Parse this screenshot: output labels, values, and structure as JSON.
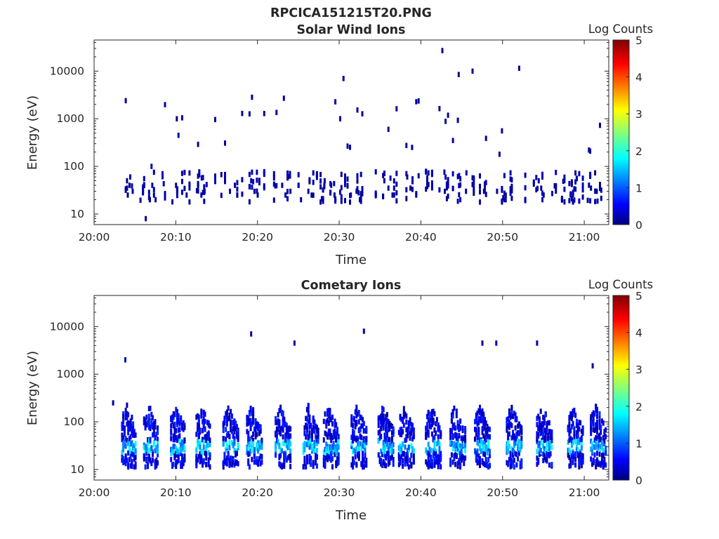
{
  "figure_title": "RPCICA151215T20.PNG",
  "colors": {
    "axis": "#262626",
    "colormap": [
      "#00007f",
      "#0000ff",
      "#007fff",
      "#00ffff",
      "#7fff7f",
      "#ffff00",
      "#ff7f00",
      "#ff0000",
      "#7f0000"
    ]
  },
  "chart_data": [
    {
      "type": "heatmap",
      "title": "Solar Wind Ions",
      "xlabel": "Time",
      "ylabel": "Energy (eV)",
      "xlim": [
        "20:00",
        "21:03"
      ],
      "ylim": [
        6,
        45000
      ],
      "yscale": "log",
      "grid": false,
      "x_ticks": [
        "20:00",
        "20:10",
        "20:20",
        "20:30",
        "20:40",
        "20:50",
        "21:00"
      ],
      "y_ticks": [
        10,
        100,
        1000,
        10000
      ],
      "y_tick_labels": [
        "10",
        "100",
        "1000",
        "10000"
      ],
      "colorbar": {
        "title": "Log Counts",
        "range": [
          0,
          5
        ],
        "ticks": [
          "0",
          "1",
          "2",
          "3",
          "4",
          "5"
        ]
      },
      "points": [
        [
          3.9,
          50,
          0.1
        ],
        [
          3.9,
          35,
          0.2
        ],
        [
          4.0,
          25,
          0.1
        ],
        [
          4.2,
          40,
          0.1
        ],
        [
          4.3,
          60,
          0.2
        ],
        [
          4.6,
          30,
          0.1
        ],
        [
          6.7,
          20,
          0.1
        ],
        [
          6.9,
          100,
          0.2
        ],
        [
          7.0,
          40,
          0.1
        ],
        [
          7.2,
          25,
          0.1
        ],
        [
          7.4,
          20,
          0.1
        ],
        [
          6.2,
          8,
          0.1
        ],
        [
          9.9,
          40,
          0.1
        ],
        [
          10.2,
          450,
          0.2
        ],
        [
          10.0,
          1000,
          0.1
        ],
        [
          11.2,
          25,
          0.1
        ],
        [
          13.0,
          25,
          0.1
        ],
        [
          13.4,
          30,
          0.1
        ],
        [
          17.1,
          40,
          0.1
        ],
        [
          17.4,
          25,
          0.1
        ],
        [
          19.1,
          50,
          0.2
        ],
        [
          19.5,
          30,
          0.1
        ],
        [
          19.9,
          25,
          0.1
        ],
        [
          22.9,
          40,
          0.1
        ],
        [
          23.3,
          25,
          0.1
        ],
        [
          23.6,
          60,
          0.1
        ],
        [
          23.9,
          30,
          0.1
        ],
        [
          26.1,
          30,
          0.1
        ],
        [
          26.5,
          25,
          0.1
        ],
        [
          28.1,
          50,
          0.1
        ],
        [
          28.9,
          40,
          0.1
        ],
        [
          29.3,
          25,
          0.1
        ],
        [
          31.3,
          25,
          0.1
        ],
        [
          32.0,
          30,
          0.1
        ],
        [
          32.4,
          20,
          0.1
        ],
        [
          35.4,
          50,
          0.1
        ],
        [
          35.9,
          35,
          0.1
        ],
        [
          36.4,
          25,
          0.1
        ],
        [
          38.2,
          60,
          0.2
        ],
        [
          38.6,
          35,
          0.1
        ],
        [
          39.3,
          25,
          0.1
        ],
        [
          42.8,
          30,
          0.1
        ],
        [
          45.4,
          30,
          0.1
        ],
        [
          47.6,
          30,
          0.1
        ],
        [
          49.2,
          30,
          0.1
        ],
        [
          51.0,
          35,
          0.1
        ],
        [
          54.3,
          50,
          0.2
        ],
        [
          54.6,
          35,
          0.1
        ],
        [
          54.9,
          25,
          0.1
        ],
        [
          58.2,
          25,
          0.1
        ],
        [
          60.7,
          35,
          0.1
        ],
        [
          61.4,
          30,
          0.1
        ],
        [
          42.5,
          27000,
          0.1
        ],
        [
          51.9,
          11500,
          0.1
        ],
        [
          46.2,
          10000,
          0.1
        ],
        [
          44.5,
          8500,
          0.1
        ],
        [
          30.4,
          7000,
          0.1
        ],
        [
          23.1,
          2700,
          0.1
        ],
        [
          35.9,
          600,
          0.1
        ],
        [
          38.8,
          250,
          0.1
        ],
        [
          49.5,
          180,
          0.1
        ]
      ]
    },
    {
      "type": "heatmap",
      "title": "Cometary Ions",
      "xlabel": "Time",
      "ylabel": "Energy (eV)",
      "xlim": [
        "20:00",
        "21:03"
      ],
      "ylim": [
        6,
        45000
      ],
      "yscale": "log",
      "grid": false,
      "x_ticks": [
        "20:00",
        "20:10",
        "20:20",
        "20:30",
        "20:40",
        "20:50",
        "21:00"
      ],
      "y_ticks": [
        10,
        100,
        1000,
        10000
      ],
      "y_tick_labels": [
        "10",
        "100",
        "1000",
        "10000"
      ],
      "colorbar": {
        "title": "Log Counts",
        "range": [
          0,
          5
        ],
        "ticks": [
          "0",
          "1",
          "2",
          "3",
          "4",
          "5"
        ]
      },
      "bursts": [
        3.9,
        6.6,
        9.9,
        13.0,
        16.3,
        19.2,
        22.7,
        26.1,
        28.6,
        32.0,
        35.3,
        37.8,
        41.1,
        44.1,
        47.1,
        51.0,
        54.7,
        58.5,
        61.3
      ],
      "points": [
        [
          2.2,
          250,
          0.2
        ],
        [
          3.7,
          2000,
          0.2
        ],
        [
          19.1,
          7000,
          0.2
        ],
        [
          24.4,
          4500,
          0.2
        ],
        [
          32.9,
          8000,
          0.3
        ],
        [
          47.4,
          4500,
          0.2
        ],
        [
          49.1,
          4500,
          0.2
        ],
        [
          54.1,
          4500,
          0.2
        ],
        [
          60.9,
          1500,
          0.2
        ]
      ]
    }
  ]
}
